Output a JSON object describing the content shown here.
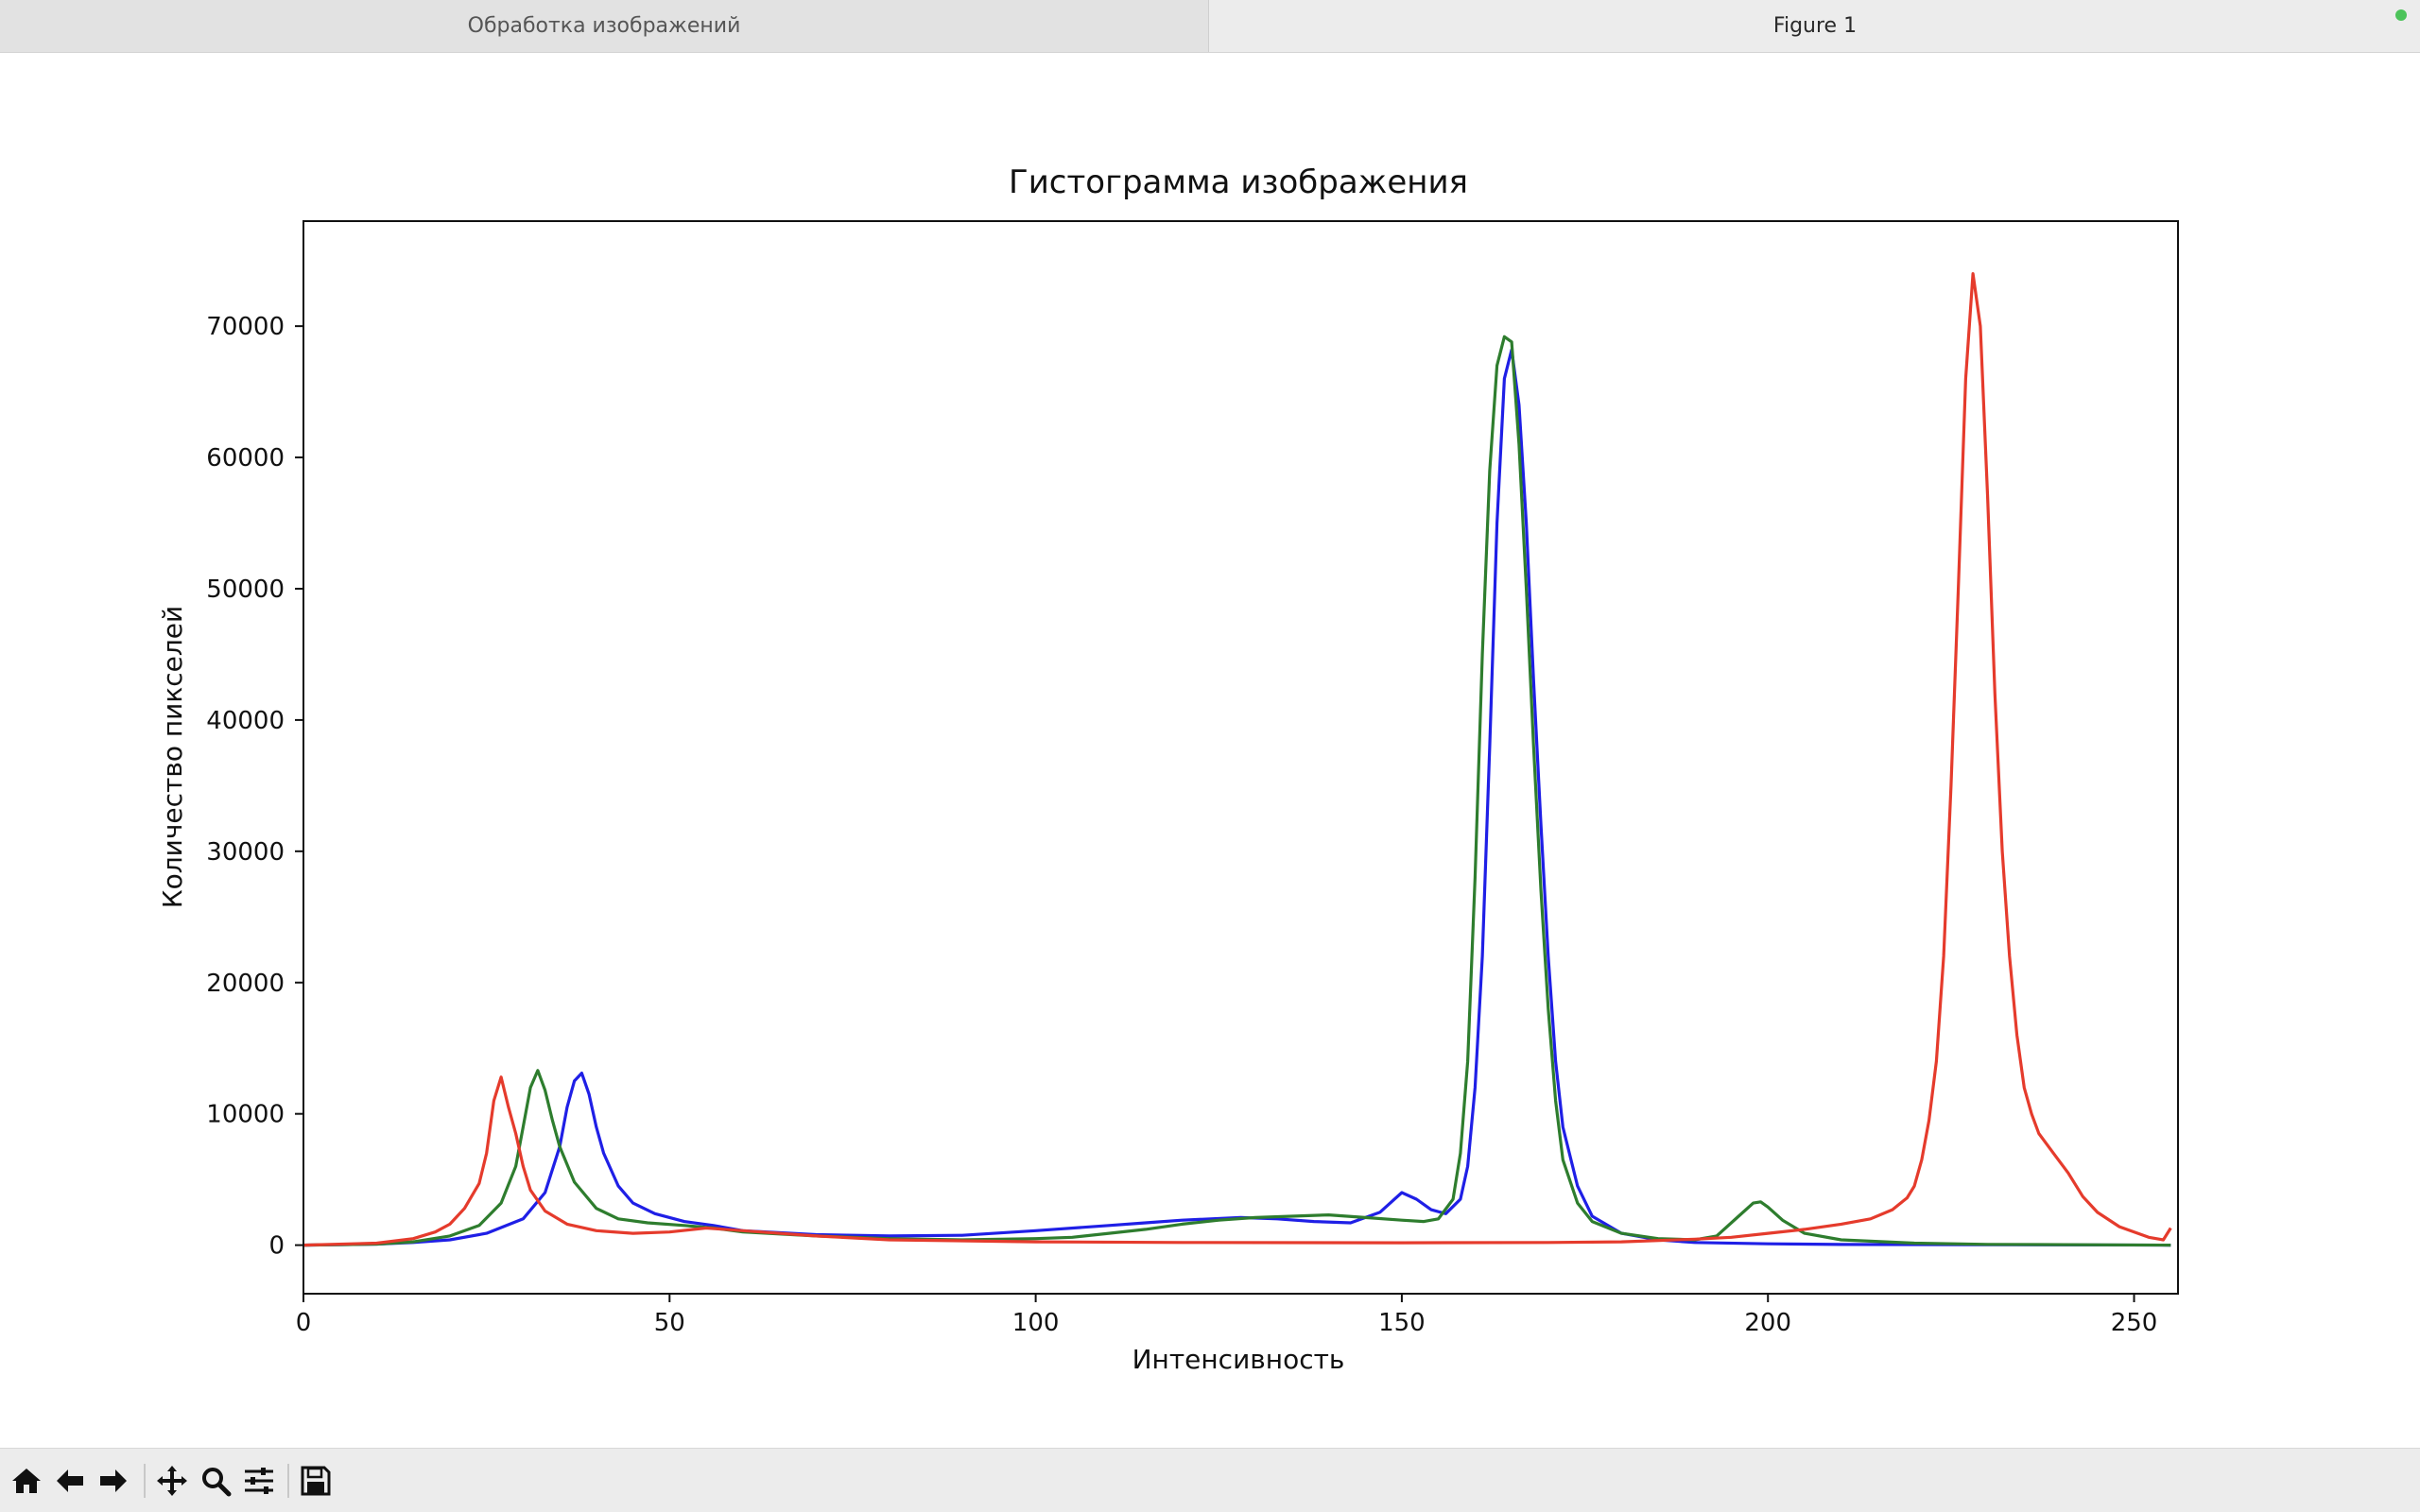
{
  "tabs": [
    {
      "label": "Обработка изображений",
      "active": false
    },
    {
      "label": "Figure 1",
      "active": true
    }
  ],
  "toolbar": {
    "buttons": [
      "home-icon",
      "back-arrow-icon",
      "forward-arrow-icon",
      "pan-icon",
      "zoom-icon",
      "subplots-icon",
      "save-icon"
    ]
  },
  "chart_data": {
    "type": "line",
    "title": "Гистограмма изображения",
    "xlabel": "Интенсивность",
    "ylabel": "Количество пикселей",
    "xlim": [
      0,
      256
    ],
    "ylim": [
      -3700,
      78000
    ],
    "xticks": [
      0,
      50,
      100,
      150,
      200,
      250
    ],
    "yticks": [
      0,
      10000,
      20000,
      30000,
      40000,
      50000,
      60000,
      70000
    ],
    "grid": false,
    "legend": "none",
    "series": [
      {
        "color": "#1f1fe6",
        "points": [
          [
            0,
            0
          ],
          [
            10,
            80
          ],
          [
            15,
            200
          ],
          [
            20,
            400
          ],
          [
            25,
            900
          ],
          [
            30,
            2000
          ],
          [
            33,
            4000
          ],
          [
            35,
            7500
          ],
          [
            36,
            10500
          ],
          [
            37,
            12500
          ],
          [
            38,
            13100
          ],
          [
            39,
            11500
          ],
          [
            40,
            9000
          ],
          [
            41,
            7000
          ],
          [
            43,
            4500
          ],
          [
            45,
            3200
          ],
          [
            48,
            2400
          ],
          [
            52,
            1800
          ],
          [
            56,
            1500
          ],
          [
            60,
            1100
          ],
          [
            70,
            800
          ],
          [
            80,
            700
          ],
          [
            90,
            750
          ],
          [
            100,
            1100
          ],
          [
            110,
            1500
          ],
          [
            115,
            1700
          ],
          [
            120,
            1900
          ],
          [
            128,
            2100
          ],
          [
            133,
            2000
          ],
          [
            138,
            1800
          ],
          [
            143,
            1700
          ],
          [
            147,
            2500
          ],
          [
            150,
            4000
          ],
          [
            152,
            3500
          ],
          [
            154,
            2700
          ],
          [
            156,
            2400
          ],
          [
            158,
            3500
          ],
          [
            159,
            6000
          ],
          [
            160,
            12000
          ],
          [
            161,
            22000
          ],
          [
            162,
            38000
          ],
          [
            163,
            55000
          ],
          [
            164,
            66000
          ],
          [
            165,
            68200
          ],
          [
            166,
            64000
          ],
          [
            167,
            55000
          ],
          [
            168,
            43000
          ],
          [
            169,
            32000
          ],
          [
            170,
            22000
          ],
          [
            171,
            14000
          ],
          [
            172,
            9000
          ],
          [
            174,
            4500
          ],
          [
            176,
            2200
          ],
          [
            180,
            900
          ],
          [
            185,
            400
          ],
          [
            190,
            200
          ],
          [
            200,
            100
          ],
          [
            210,
            50
          ],
          [
            255,
            0
          ]
        ]
      },
      {
        "color": "#2e7d2e",
        "points": [
          [
            0,
            0
          ],
          [
            10,
            80
          ],
          [
            15,
            250
          ],
          [
            20,
            700
          ],
          [
            24,
            1500
          ],
          [
            27,
            3200
          ],
          [
            29,
            6000
          ],
          [
            30,
            9000
          ],
          [
            31,
            12000
          ],
          [
            32,
            13300
          ],
          [
            33,
            11800
          ],
          [
            34,
            9500
          ],
          [
            35,
            7500
          ],
          [
            37,
            4800
          ],
          [
            40,
            2800
          ],
          [
            43,
            2000
          ],
          [
            47,
            1700
          ],
          [
            52,
            1500
          ],
          [
            56,
            1300
          ],
          [
            60,
            1000
          ],
          [
            70,
            700
          ],
          [
            80,
            500
          ],
          [
            90,
            400
          ],
          [
            100,
            500
          ],
          [
            105,
            600
          ],
          [
            110,
            900
          ],
          [
            115,
            1200
          ],
          [
            120,
            1600
          ],
          [
            125,
            1900
          ],
          [
            130,
            2100
          ],
          [
            135,
            2200
          ],
          [
            140,
            2300
          ],
          [
            145,
            2100
          ],
          [
            150,
            1900
          ],
          [
            153,
            1800
          ],
          [
            155,
            2000
          ],
          [
            157,
            3500
          ],
          [
            158,
            7000
          ],
          [
            159,
            14000
          ],
          [
            160,
            28000
          ],
          [
            161,
            45000
          ],
          [
            162,
            59000
          ],
          [
            163,
            67000
          ],
          [
            164,
            69200
          ],
          [
            165,
            68800
          ],
          [
            166,
            61000
          ],
          [
            167,
            50000
          ],
          [
            168,
            38000
          ],
          [
            169,
            27000
          ],
          [
            170,
            18000
          ],
          [
            171,
            11000
          ],
          [
            172,
            6500
          ],
          [
            174,
            3200
          ],
          [
            176,
            1800
          ],
          [
            180,
            900
          ],
          [
            185,
            500
          ],
          [
            190,
            400
          ],
          [
            193,
            700
          ],
          [
            196,
            2200
          ],
          [
            198,
            3200
          ],
          [
            199,
            3300
          ],
          [
            200,
            2900
          ],
          [
            202,
            1900
          ],
          [
            205,
            900
          ],
          [
            210,
            400
          ],
          [
            220,
            150
          ],
          [
            230,
            60
          ],
          [
            255,
            0
          ]
        ]
      },
      {
        "color": "#e53b2c",
        "points": [
          [
            0,
            0
          ],
          [
            10,
            150
          ],
          [
            15,
            500
          ],
          [
            18,
            1000
          ],
          [
            20,
            1600
          ],
          [
            22,
            2800
          ],
          [
            24,
            4700
          ],
          [
            25,
            7000
          ],
          [
            26,
            11000
          ],
          [
            27,
            12800
          ],
          [
            28,
            10500
          ],
          [
            29,
            8500
          ],
          [
            30,
            6000
          ],
          [
            31,
            4200
          ],
          [
            33,
            2600
          ],
          [
            36,
            1600
          ],
          [
            40,
            1100
          ],
          [
            45,
            900
          ],
          [
            50,
            1000
          ],
          [
            55,
            1300
          ],
          [
            60,
            1100
          ],
          [
            70,
            700
          ],
          [
            80,
            400
          ],
          [
            100,
            250
          ],
          [
            120,
            200
          ],
          [
            150,
            180
          ],
          [
            170,
            200
          ],
          [
            180,
            250
          ],
          [
            190,
            450
          ],
          [
            195,
            600
          ],
          [
            200,
            900
          ],
          [
            205,
            1200
          ],
          [
            210,
            1600
          ],
          [
            214,
            2000
          ],
          [
            217,
            2700
          ],
          [
            219,
            3600
          ],
          [
            220,
            4500
          ],
          [
            221,
            6500
          ],
          [
            222,
            9500
          ],
          [
            223,
            14000
          ],
          [
            224,
            22000
          ],
          [
            225,
            35000
          ],
          [
            226,
            50000
          ],
          [
            227,
            66000
          ],
          [
            228,
            74000
          ],
          [
            229,
            70000
          ],
          [
            230,
            57000
          ],
          [
            231,
            42000
          ],
          [
            232,
            30000
          ],
          [
            233,
            22000
          ],
          [
            234,
            16000
          ],
          [
            235,
            12000
          ],
          [
            236,
            10000
          ],
          [
            237,
            8500
          ],
          [
            239,
            7000
          ],
          [
            241,
            5500
          ],
          [
            243,
            3700
          ],
          [
            245,
            2500
          ],
          [
            248,
            1400
          ],
          [
            252,
            600
          ],
          [
            254,
            400
          ],
          [
            255,
            1300
          ]
        ]
      }
    ]
  }
}
